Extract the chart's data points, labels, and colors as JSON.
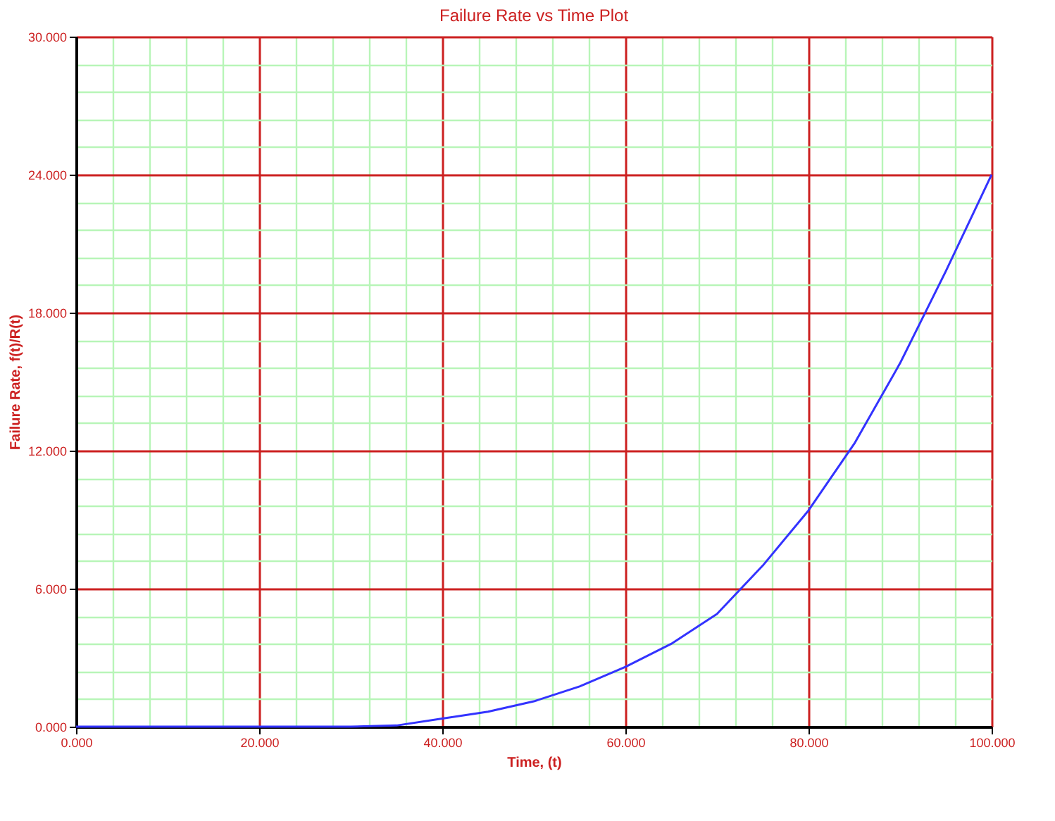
{
  "chart_data": {
    "type": "line",
    "title": "Failure Rate vs Time Plot",
    "xlabel": "Time, (t)",
    "ylabel": "Failure Rate, f(t)/R(t)",
    "x": [
      0,
      10,
      20,
      30,
      35,
      40,
      45,
      50,
      55,
      60,
      65,
      70,
      75,
      80,
      85,
      90,
      95,
      100
    ],
    "series": [
      {
        "color": "#3333ff",
        "values": [
          0,
          0,
          0,
          0,
          0.05,
          0.35,
          0.65,
          1.1,
          1.75,
          2.6,
          3.6,
          4.9,
          7.0,
          9.4,
          12.3,
          15.8,
          19.8,
          24.0
        ]
      }
    ],
    "xlim": [
      0,
      100
    ],
    "ylim": [
      0,
      30
    ],
    "xticks": [
      {
        "value": 0,
        "label": "0.000"
      },
      {
        "value": 4,
        "label": null
      },
      {
        "value": 8,
        "label": null
      },
      {
        "value": 12,
        "label": null
      },
      {
        "value": 16,
        "label": null
      },
      {
        "value": 20,
        "label": "20.000"
      },
      {
        "value": 24,
        "label": null
      },
      {
        "value": 28,
        "label": null
      },
      {
        "value": 32,
        "label": null
      },
      {
        "value": 36,
        "label": null
      },
      {
        "value": 40,
        "label": "40.000"
      },
      {
        "value": 44,
        "label": null
      },
      {
        "value": 48,
        "label": null
      },
      {
        "value": 52,
        "label": null
      },
      {
        "value": 56,
        "label": null
      },
      {
        "value": 60,
        "label": "60.000"
      },
      {
        "value": 64,
        "label": null
      },
      {
        "value": 68,
        "label": null
      },
      {
        "value": 72,
        "label": null
      },
      {
        "value": 76,
        "label": null
      },
      {
        "value": 80,
        "label": "80.000"
      },
      {
        "value": 84,
        "label": null
      },
      {
        "value": 88,
        "label": null
      },
      {
        "value": 92,
        "label": null
      },
      {
        "value": 96,
        "label": null
      },
      {
        "value": 100,
        "label": "100.000"
      }
    ],
    "yticks": [
      {
        "value": 0,
        "label": "0.000"
      },
      {
        "value": 1.2,
        "label": null
      },
      {
        "value": 2.4,
        "label": null
      },
      {
        "value": 3.6,
        "label": null
      },
      {
        "value": 4.8,
        "label": null
      },
      {
        "value": 6,
        "label": "6.000"
      },
      {
        "value": 7.2,
        "label": null
      },
      {
        "value": 8.4,
        "label": null
      },
      {
        "value": 9.6,
        "label": null
      },
      {
        "value": 10.8,
        "label": null
      },
      {
        "value": 12,
        "label": "12.000"
      },
      {
        "value": 13.2,
        "label": null
      },
      {
        "value": 14.4,
        "label": null
      },
      {
        "value": 15.6,
        "label": null
      },
      {
        "value": 16.8,
        "label": null
      },
      {
        "value": 18,
        "label": "18.000"
      },
      {
        "value": 19.2,
        "label": null
      },
      {
        "value": 20.4,
        "label": null
      },
      {
        "value": 21.6,
        "label": null
      },
      {
        "value": 22.8,
        "label": null
      },
      {
        "value": 24,
        "label": "24.000"
      },
      {
        "value": 25.2,
        "label": null
      },
      {
        "value": 26.4,
        "label": null
      },
      {
        "value": 27.6,
        "label": null
      },
      {
        "value": 28.8,
        "label": null
      },
      {
        "value": 30,
        "label": "30.000"
      }
    ],
    "grid": true,
    "marker": "none",
    "line_style": "solid"
  }
}
